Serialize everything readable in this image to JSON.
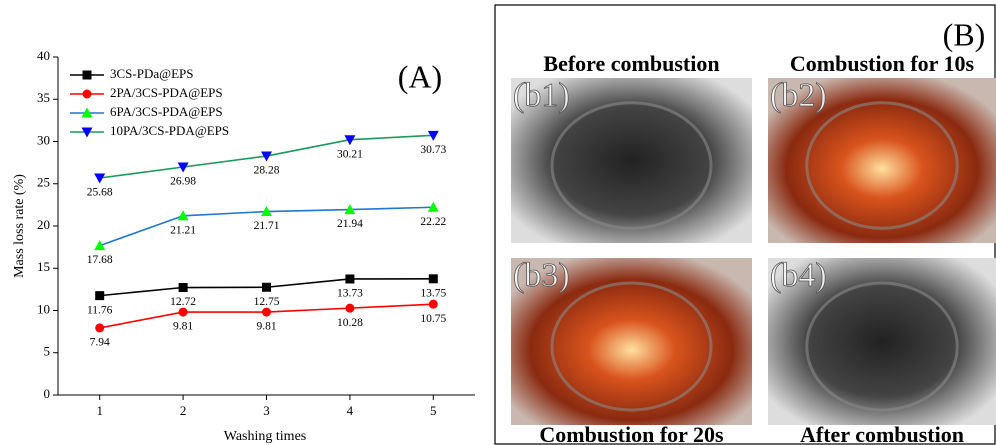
{
  "chart_data": {
    "type": "line",
    "panel_label": "(A)",
    "x_label": "Washing times",
    "y_label": "Mass loss rate (%)",
    "x": [
      1,
      2,
      3,
      4,
      5
    ],
    "xlim": [
      0.5,
      5.5
    ],
    "xticks": [
      1,
      2,
      3,
      4,
      5
    ],
    "ylim": [
      0,
      40
    ],
    "yticks": [
      0,
      5,
      10,
      15,
      20,
      25,
      30,
      35,
      40
    ],
    "legend": "upper left",
    "series": [
      {
        "name": "3CS-PDa@EPS",
        "color": "#000000",
        "line_color": "#000000",
        "marker": "square",
        "values": [
          11.76,
          12.72,
          12.75,
          13.73,
          13.75
        ]
      },
      {
        "name": "2PA/3CS-PDA@EPS",
        "color": "#ff0000",
        "line_color": "#ff0000",
        "marker": "circle",
        "values": [
          7.94,
          9.81,
          9.81,
          10.28,
          10.75
        ]
      },
      {
        "name": "6PA/3CS-PDA@EPS",
        "color": "#00ff00",
        "line_color": "#1f77d4",
        "marker": "triangle-up",
        "values": [
          17.68,
          21.21,
          21.71,
          21.94,
          22.22
        ]
      },
      {
        "name": "10PA/3CS-PDA@EPS",
        "color": "#0000ff",
        "line_color": "#1a9a5a",
        "marker": "triangle-down",
        "values": [
          25.68,
          26.98,
          28.28,
          30.21,
          30.73
        ]
      }
    ]
  },
  "panel_b": {
    "label": "(B)",
    "photos": [
      {
        "tag": "(b1)",
        "caption": "Before combustion"
      },
      {
        "tag": "(b2)",
        "caption": "Combustion for 10s"
      },
      {
        "tag": "(b3)",
        "caption": "Combustion for 20s"
      },
      {
        "tag": "(b4)",
        "caption": "After combustion"
      }
    ]
  }
}
